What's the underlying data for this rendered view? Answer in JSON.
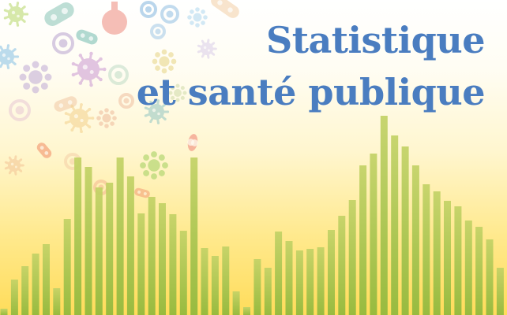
{
  "title": {
    "line1": "Statistique",
    "line2": "et santé publique"
  },
  "colors": {
    "title": "#4a7dc0",
    "bar_top": "#bfcf62",
    "bar_bottom": "#93bb3f",
    "background_top": "#ffffff",
    "background_bottom": "#ffdc5a"
  },
  "decor": {
    "bars": [
      8,
      45,
      62,
      78,
      90,
      34,
      122,
      200,
      188,
      162,
      168,
      200,
      176,
      129,
      150,
      142,
      128,
      107,
      200,
      85,
      75,
      87,
      30,
      10,
      71,
      60,
      106,
      94,
      82,
      84,
      86,
      108,
      126,
      146,
      190,
      205,
      253,
      228,
      214,
      190,
      166,
      157,
      145,
      138,
      120,
      112,
      96,
      60,
      49
    ],
    "icons": [
      "virus-icon",
      "bacteria-icon",
      "cell-icon",
      "microbe-icon",
      "flask-icon"
    ]
  }
}
